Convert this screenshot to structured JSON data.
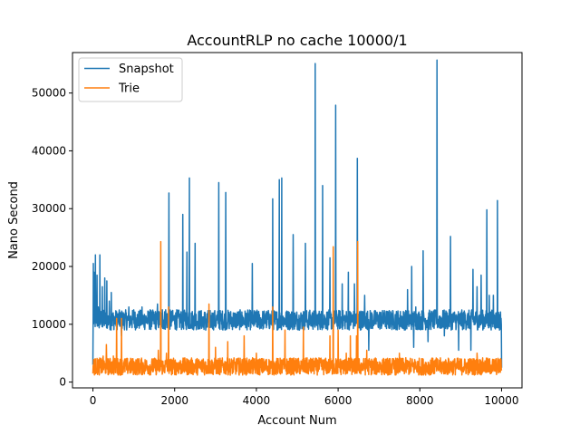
{
  "chart_data": {
    "type": "line",
    "title": "AccountRLP no cache 10000/1",
    "xlabel": "Account Num",
    "ylabel": "Nano Second",
    "xlim": [
      -500,
      10500
    ],
    "ylim": [
      -1000,
      57000
    ],
    "xticks": [
      0,
      2000,
      4000,
      6000,
      8000,
      10000
    ],
    "yticks": [
      0,
      10000,
      20000,
      30000,
      40000,
      50000
    ],
    "grid": false,
    "legend": "top-left",
    "series": [
      {
        "name": "Snapshot",
        "color": "#1f77b4",
        "noise_band": [
          9000,
          12500
        ],
        "points": [
          [
            0,
            3000
          ],
          [
            10,
            20500
          ],
          [
            30,
            19000
          ],
          [
            60,
            22000
          ],
          [
            100,
            18500
          ],
          [
            130,
            13000
          ],
          [
            170,
            22000
          ],
          [
            230,
            16500
          ],
          [
            290,
            18000
          ],
          [
            340,
            17500
          ],
          [
            400,
            14000
          ],
          [
            450,
            15500
          ],
          [
            520,
            11000
          ],
          [
            620,
            11000
          ],
          [
            700,
            8000
          ],
          [
            880,
            13000
          ],
          [
            1000,
            12500
          ],
          [
            1200,
            13000
          ],
          [
            1400,
            12500
          ],
          [
            1580,
            13500
          ],
          [
            1700,
            12500
          ],
          [
            1780,
            12500
          ],
          [
            1860,
            32700
          ],
          [
            1940,
            12000
          ],
          [
            2050,
            12500
          ],
          [
            2150,
            10500
          ],
          [
            2200,
            29000
          ],
          [
            2260,
            12000
          ],
          [
            2300,
            22500
          ],
          [
            2360,
            35300
          ],
          [
            2420,
            10000
          ],
          [
            2500,
            24000
          ],
          [
            2560,
            10500
          ],
          [
            2700,
            9500
          ],
          [
            2760,
            9000
          ],
          [
            2800,
            9500
          ],
          [
            2880,
            9800
          ],
          [
            3000,
            9500
          ],
          [
            3080,
            34500
          ],
          [
            3150,
            10000
          ],
          [
            3250,
            32800
          ],
          [
            3300,
            10500
          ],
          [
            3500,
            10000
          ],
          [
            3700,
            10000
          ],
          [
            3800,
            10000
          ],
          [
            3900,
            20500
          ],
          [
            3960,
            10000
          ],
          [
            4100,
            10000
          ],
          [
            4400,
            31700
          ],
          [
            4460,
            10000
          ],
          [
            4560,
            35000
          ],
          [
            4620,
            35300
          ],
          [
            4700,
            10000
          ],
          [
            4850,
            10000
          ],
          [
            4900,
            25500
          ],
          [
            4960,
            10000
          ],
          [
            5200,
            24000
          ],
          [
            5260,
            10000
          ],
          [
            5440,
            55100
          ],
          [
            5500,
            10000
          ],
          [
            5620,
            34000
          ],
          [
            5680,
            10000
          ],
          [
            5800,
            21500
          ],
          [
            5840,
            10000
          ],
          [
            5940,
            47900
          ],
          [
            6000,
            10000
          ],
          [
            6100,
            17000
          ],
          [
            6250,
            19000
          ],
          [
            6400,
            17000
          ],
          [
            6470,
            38700
          ],
          [
            6530,
            10000
          ],
          [
            6650,
            15000
          ],
          [
            6750,
            5500
          ],
          [
            6900,
            12000
          ],
          [
            7100,
            12000
          ],
          [
            7300,
            10500
          ],
          [
            7500,
            10000
          ],
          [
            7700,
            16000
          ],
          [
            7800,
            20000
          ],
          [
            7850,
            6000
          ],
          [
            7900,
            13000
          ],
          [
            8000,
            10000
          ],
          [
            8080,
            22700
          ],
          [
            8130,
            10000
          ],
          [
            8200,
            7000
          ],
          [
            8300,
            10500
          ],
          [
            8420,
            55700
          ],
          [
            8470,
            10000
          ],
          [
            8600,
            8000
          ],
          [
            8750,
            25200
          ],
          [
            8800,
            10000
          ],
          [
            8950,
            5500
          ],
          [
            9100,
            12000
          ],
          [
            9250,
            5500
          ],
          [
            9300,
            19500
          ],
          [
            9400,
            16500
          ],
          [
            9500,
            18500
          ],
          [
            9640,
            29800
          ],
          [
            9700,
            15000
          ],
          [
            9800,
            15000
          ],
          [
            9900,
            31400
          ],
          [
            9950,
            9000
          ],
          [
            10000,
            2500
          ]
        ]
      },
      {
        "name": "Trie",
        "color": "#ff7f0e",
        "noise_band": [
          1200,
          4200
        ],
        "points": [
          [
            0,
            1500
          ],
          [
            60,
            4000
          ],
          [
            150,
            2500
          ],
          [
            250,
            4500
          ],
          [
            330,
            6500
          ],
          [
            400,
            3000
          ],
          [
            500,
            4500
          ],
          [
            580,
            11000
          ],
          [
            640,
            2000
          ],
          [
            700,
            11000
          ],
          [
            760,
            2500
          ],
          [
            900,
            3500
          ],
          [
            1100,
            2000
          ],
          [
            1300,
            2500
          ],
          [
            1500,
            2500
          ],
          [
            1600,
            5500
          ],
          [
            1660,
            24300
          ],
          [
            1720,
            2000
          ],
          [
            1800,
            5000
          ],
          [
            1850,
            13000
          ],
          [
            1900,
            2000
          ],
          [
            2200,
            3000
          ],
          [
            2300,
            2000
          ],
          [
            2500,
            2500
          ],
          [
            2700,
            4000
          ],
          [
            2840,
            13500
          ],
          [
            2900,
            2000
          ],
          [
            3000,
            6000
          ],
          [
            3100,
            2500
          ],
          [
            3300,
            7000
          ],
          [
            3500,
            3000
          ],
          [
            3700,
            8000
          ],
          [
            3900,
            3000
          ],
          [
            4000,
            5000
          ],
          [
            4200,
            2000
          ],
          [
            4400,
            13000
          ],
          [
            4460,
            3000
          ],
          [
            4700,
            9000
          ],
          [
            4800,
            3000
          ],
          [
            5050,
            2500
          ],
          [
            5150,
            9500
          ],
          [
            5200,
            2500
          ],
          [
            5400,
            3000
          ],
          [
            5600,
            3000
          ],
          [
            5800,
            8000
          ],
          [
            5840,
            2500
          ],
          [
            5880,
            23400
          ],
          [
            5940,
            3000
          ],
          [
            6000,
            9000
          ],
          [
            6100,
            2500
          ],
          [
            6200,
            5000
          ],
          [
            6300,
            8000
          ],
          [
            6350,
            2500
          ],
          [
            6450,
            8000
          ],
          [
            6480,
            24300
          ],
          [
            6540,
            2500
          ],
          [
            6700,
            5500
          ],
          [
            6900,
            3000
          ],
          [
            7100,
            3500
          ],
          [
            7300,
            3000
          ],
          [
            7500,
            5000
          ],
          [
            7700,
            3000
          ],
          [
            7900,
            3500
          ],
          [
            8100,
            2500
          ],
          [
            8300,
            3000
          ],
          [
            8450,
            2000
          ],
          [
            8600,
            3000
          ],
          [
            8800,
            2500
          ],
          [
            9000,
            2000
          ],
          [
            9200,
            3000
          ],
          [
            9400,
            5000
          ],
          [
            9550,
            2000
          ],
          [
            9700,
            2500
          ],
          [
            9800,
            3000
          ],
          [
            9900,
            2500
          ],
          [
            10000,
            2000
          ]
        ]
      }
    ]
  }
}
